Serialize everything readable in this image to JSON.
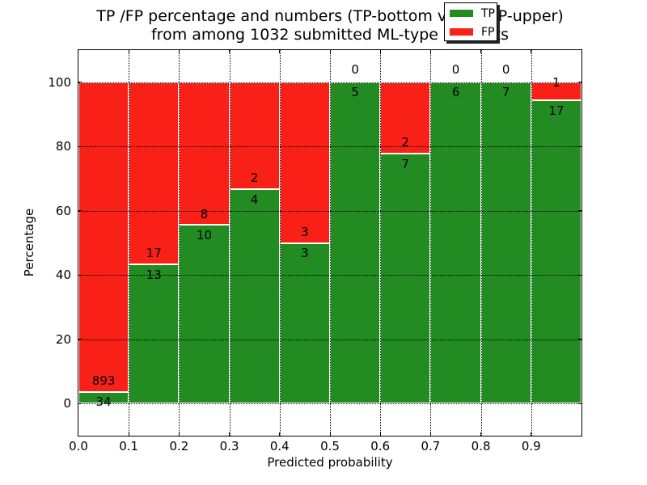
{
  "figure": {
    "title_line1": "TP /FP percentage and numbers (TP-bottom value, FP-upper)",
    "title_line2": "from among 1032 submitted ML-type contacts"
  },
  "chart_data": {
    "type": "bar",
    "stacked": true,
    "orientation": "vertical",
    "title": "TP /FP percentage and numbers (TP-bottom value, FP-upper) from among 1032 submitted ML-type contacts",
    "total_contacts": 1032,
    "xlabel": "Predicted probability",
    "ylabel": "Percentage",
    "xlim": [
      0.0,
      1.0
    ],
    "ylim": [
      -10,
      110
    ],
    "bin_edges": [
      0.0,
      0.1,
      0.2,
      0.3,
      0.4,
      0.5,
      0.6,
      0.7,
      0.8,
      0.9,
      1.0
    ],
    "x_tick_labels": [
      "0.0",
      "0.1",
      "0.2",
      "0.3",
      "0.4",
      "0.5",
      "0.6",
      "0.7",
      "0.8",
      "0.9"
    ],
    "y_ticks": [
      0,
      20,
      40,
      60,
      80,
      100
    ],
    "y_tick_labels": [
      "0",
      "20",
      "40",
      "60",
      "80",
      "100"
    ],
    "grid": "dotted",
    "legend_position": "upper right",
    "series": [
      {
        "name": "TP",
        "color": "#228b22",
        "counts": [
          34,
          13,
          10,
          4,
          3,
          5,
          7,
          6,
          7,
          17
        ],
        "percent": [
          3.7,
          43.3,
          55.6,
          66.7,
          50.0,
          100.0,
          77.8,
          100.0,
          100.0,
          94.4
        ]
      },
      {
        "name": "FP",
        "color": "#f82017",
        "counts": [
          893,
          17,
          8,
          2,
          3,
          0,
          2,
          0,
          0,
          1
        ],
        "percent": [
          96.3,
          56.7,
          44.4,
          33.3,
          50.0,
          0.0,
          22.2,
          0.0,
          0.0,
          5.6
        ]
      }
    ]
  }
}
